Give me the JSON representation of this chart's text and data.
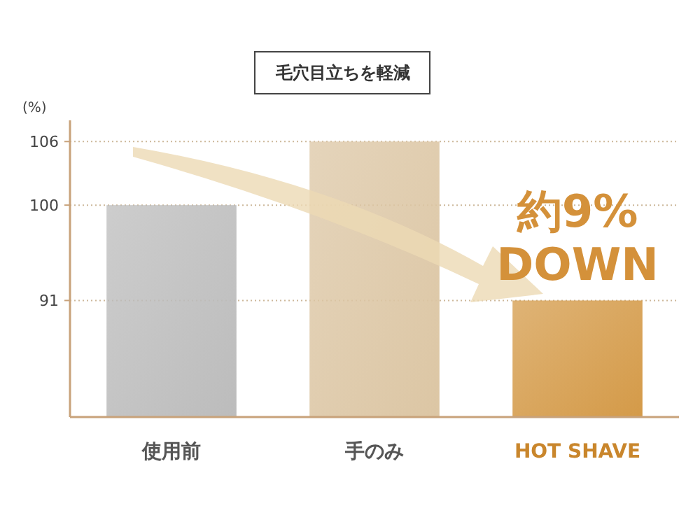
{
  "chart_data": {
    "type": "bar",
    "title": "毛穴目立ちを軽減",
    "ylabel": "(%)",
    "categories": [
      "使用前",
      "手のみ",
      "HOT SHAVE"
    ],
    "values": [
      100,
      106,
      91
    ],
    "colors": [
      "#bcbcbc",
      "#dcc6a4",
      "#d49a48"
    ],
    "ylim": [
      80,
      108
    ],
    "yticks": [
      91,
      100,
      106
    ],
    "grid": "y",
    "annotations": [
      "約9% DOWN"
    ]
  }
}
